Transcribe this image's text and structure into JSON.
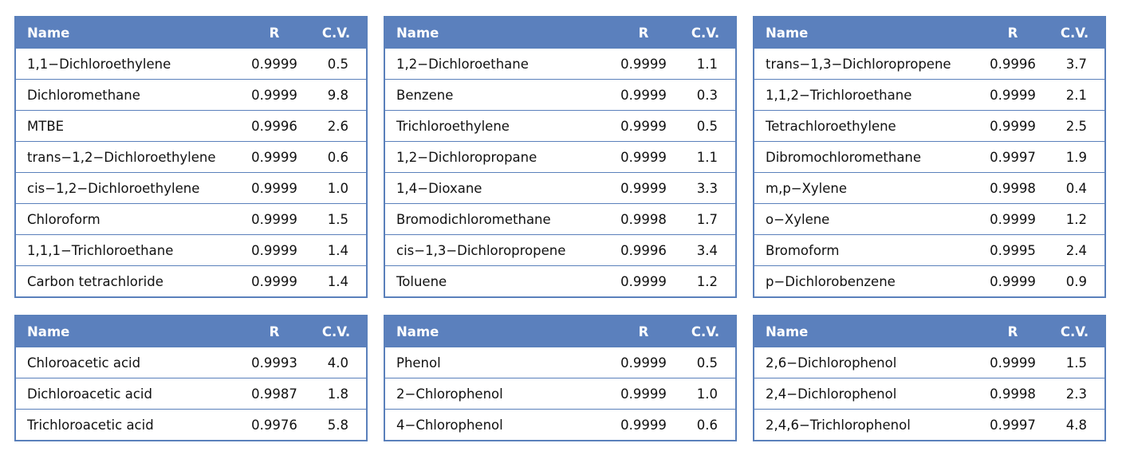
{
  "tables": [
    {
      "header": [
        "Name",
        "R",
        "C.V."
      ],
      "rows": [
        [
          "1,1−Dichloroethylene",
          "0.9999",
          "0.5"
        ],
        [
          "Dichloromethane",
          "0.9999",
          "9.8"
        ],
        [
          "MTBE",
          "0.9996",
          "2.6"
        ],
        [
          "trans−1,2−Dichloroethylene",
          "0.9999",
          "0.6"
        ],
        [
          "cis−1,2−Dichloroethylene",
          "0.9999",
          "1.0"
        ],
        [
          "Chloroform",
          "0.9999",
          "1.5"
        ],
        [
          "1,1,1−Trichloroethane",
          "0.9999",
          "1.4"
        ],
        [
          "Carbon tetrachloride",
          "0.9999",
          "1.4"
        ]
      ]
    },
    {
      "header": [
        "Name",
        "R",
        "C.V."
      ],
      "rows": [
        [
          "1,2−Dichloroethane",
          "0.9999",
          "1.1"
        ],
        [
          "Benzene",
          "0.9999",
          "0.3"
        ],
        [
          "Trichloroethylene",
          "0.9999",
          "0.5"
        ],
        [
          "1,2−Dichloropropane",
          "0.9999",
          "1.1"
        ],
        [
          "1,4−Dioxane",
          "0.9999",
          "3.3"
        ],
        [
          "Bromodichloromethane",
          "0.9998",
          "1.7"
        ],
        [
          "cis−1,3−Dichloropropene",
          "0.9996",
          "3.4"
        ],
        [
          "Toluene",
          "0.9999",
          "1.2"
        ]
      ]
    },
    {
      "header": [
        "Name",
        "R",
        "C.V."
      ],
      "rows": [
        [
          "trans−1,3−Dichloropropene",
          "0.9996",
          "3.7"
        ],
        [
          "1,1,2−Trichloroethane",
          "0.9999",
          "2.1"
        ],
        [
          "Tetrachloroethylene",
          "0.9999",
          "2.5"
        ],
        [
          "Dibromochloromethane",
          "0.9997",
          "1.9"
        ],
        [
          "m,p−Xylene",
          "0.9998",
          "0.4"
        ],
        [
          "o−Xylene",
          "0.9999",
          "1.2"
        ],
        [
          "Bromoform",
          "0.9995",
          "2.4"
        ],
        [
          "p−Dichlorobenzene",
          "0.9999",
          "0.9"
        ]
      ]
    },
    {
      "header": [
        "Name",
        "R",
        "C.V."
      ],
      "rows": [
        [
          "Chloroacetic acid",
          "0.9993",
          "4.0"
        ],
        [
          "Dichloroacetic acid",
          "0.9987",
          "1.8"
        ],
        [
          "Trichloroacetic acid",
          "0.9976",
          "5.8"
        ]
      ]
    },
    {
      "header": [
        "Name",
        "R",
        "C.V."
      ],
      "rows": [
        [
          "Phenol",
          "0.9999",
          "0.5"
        ],
        [
          "2−Chlorophenol",
          "0.9999",
          "1.0"
        ],
        [
          "4−Chlorophenol",
          "0.9999",
          "0.6"
        ]
      ]
    },
    {
      "header": [
        "Name",
        "R",
        "C.V."
      ],
      "rows": [
        [
          "2,6−Dichlorophenol",
          "0.9999",
          "1.5"
        ],
        [
          "2,4−Dichlorophenol",
          "0.9998",
          "2.3"
        ],
        [
          "2,4,6−Trichlorophenol",
          "0.9997",
          "4.8"
        ]
      ]
    }
  ]
}
